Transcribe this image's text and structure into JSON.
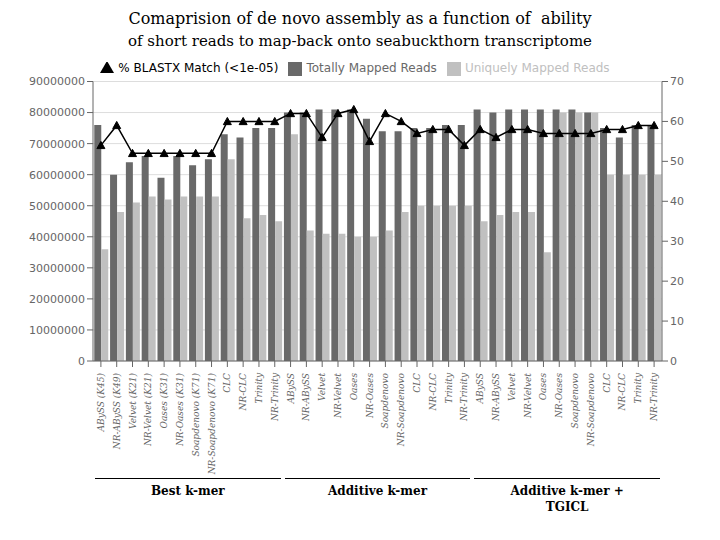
{
  "chart_data": {
    "type": "bar",
    "title": "Comaprision of de novo assembly as a function of  ability",
    "subtitle": "of short reads to map-back onto seabuckthorn transcriptome",
    "categories": [
      "ABySS (K45)",
      "NR-ABySS (K49)",
      "Velvet (K21)",
      "NR-Velvet (K21)",
      "Oases (K31)",
      "NR-Oases (K31)",
      "Soapdenovo (K71)",
      "NR-Soapdenovo (K71)",
      "CLC",
      "NR-CLC",
      "Trinity",
      "NR-Trinity",
      "ABySS",
      "NR-ABySS",
      "Velvet",
      "NR-Velvet",
      "Oases",
      "NR-Oases",
      "Soapdenovo",
      "NR-Soapdenovo",
      "CLC",
      "NR-CLC",
      "Trinity",
      "NR-Trinity",
      "ABySS",
      "NR-ABySS",
      "Velvet",
      "NR-Velvet",
      "Oases",
      "NR-Oases",
      "Soapdenovo",
      "NR-Soapdenovo",
      "CLC",
      "NR-CLC",
      "Trinity",
      "NR-Trinity"
    ],
    "series": [
      {
        "name": "Totally Mapped Reads",
        "type": "bar",
        "color": "#696969",
        "values": [
          76000000,
          60000000,
          64000000,
          66000000,
          59000000,
          66000000,
          63000000,
          65000000,
          73000000,
          72000000,
          75000000,
          75000000,
          80000000,
          80000000,
          81000000,
          81000000,
          81000000,
          78000000,
          74000000,
          74000000,
          75000000,
          75000000,
          76000000,
          76000000,
          81000000,
          80000000,
          81000000,
          81000000,
          81000000,
          81000000,
          81000000,
          80000000,
          75000000,
          72000000,
          76000000,
          76000000
        ]
      },
      {
        "name": "Uniquely Mapped Reads",
        "type": "bar",
        "color": "#c0c0c0",
        "values": [
          36000000,
          48000000,
          51000000,
          53000000,
          52000000,
          53000000,
          53000000,
          53000000,
          65000000,
          46000000,
          47000000,
          45000000,
          73000000,
          42000000,
          41000000,
          41000000,
          40000000,
          40000000,
          42000000,
          48000000,
          50000000,
          50000000,
          50000000,
          50000000,
          45000000,
          47000000,
          48000000,
          48000000,
          35000000,
          80000000,
          80000000,
          80000000,
          60000000,
          60000000,
          60000000,
          60000000
        ]
      },
      {
        "name": "% BLASTX Match (<1e-05)",
        "type": "line",
        "color": "#000000",
        "marker": "triangle",
        "axis": "y2",
        "values": [
          54,
          59,
          52,
          52,
          52,
          52,
          52,
          52,
          60,
          60,
          60,
          60,
          62,
          62,
          56,
          62,
          63,
          55,
          62,
          60,
          57,
          58,
          58,
          54,
          58,
          56,
          58,
          58,
          57,
          57,
          57,
          57,
          58,
          58,
          59,
          59
        ]
      }
    ],
    "ylim": [
      0,
      90000000
    ],
    "yticks": [
      0,
      10000000,
      20000000,
      30000000,
      40000000,
      50000000,
      60000000,
      70000000,
      80000000,
      90000000
    ],
    "y2lim": [
      0,
      70
    ],
    "y2ticks": [
      0,
      10,
      20,
      30,
      40,
      50,
      60,
      70
    ],
    "grid": true,
    "legend": "top",
    "groups": [
      {
        "label": "Best k-mer",
        "from": 0,
        "to": 12
      },
      {
        "label": "Additive k-mer",
        "from": 12,
        "to": 24
      },
      {
        "label": "Additive k-mer +\nTGICL",
        "from": 24,
        "to": 36
      }
    ]
  }
}
